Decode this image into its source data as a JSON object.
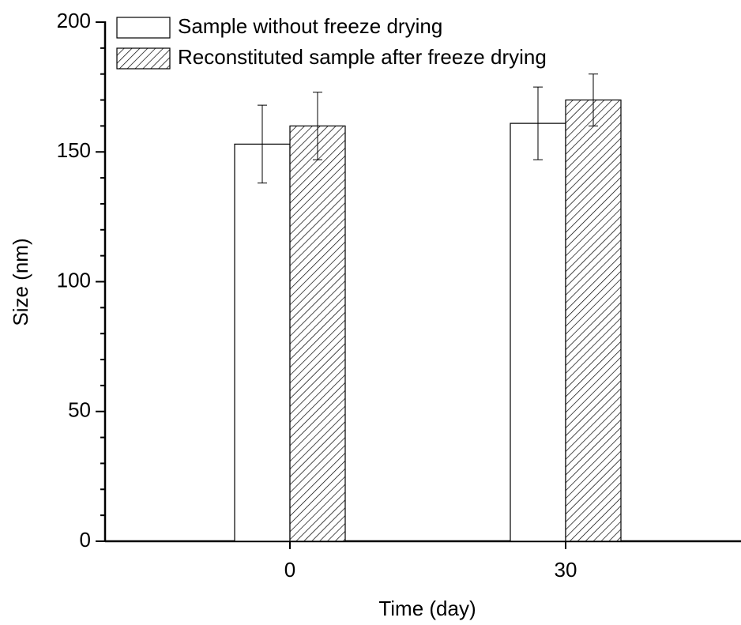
{
  "chart_data": {
    "type": "bar",
    "x_label": "Time (day)",
    "y_label": "Size (nm)",
    "categories": [
      "0",
      "30"
    ],
    "series": [
      {
        "name": "Sample without freeze drying",
        "color": "#ffffff",
        "values": [
          153,
          161
        ],
        "errors": [
          15,
          14
        ]
      },
      {
        "name": "Reconstituted sample after freeze drying",
        "color": "#ffffff",
        "pattern": "hatch",
        "values": [
          160,
          170
        ],
        "errors": [
          13,
          10
        ]
      }
    ],
    "ylim": [
      0,
      200
    ],
    "yticks": [
      0,
      50,
      100,
      150,
      200
    ],
    "yminorticks": [
      10,
      20,
      30,
      40,
      60,
      70,
      80,
      90,
      110,
      120,
      130,
      140,
      160,
      170,
      180,
      190
    ],
    "legend": "upper left"
  }
}
